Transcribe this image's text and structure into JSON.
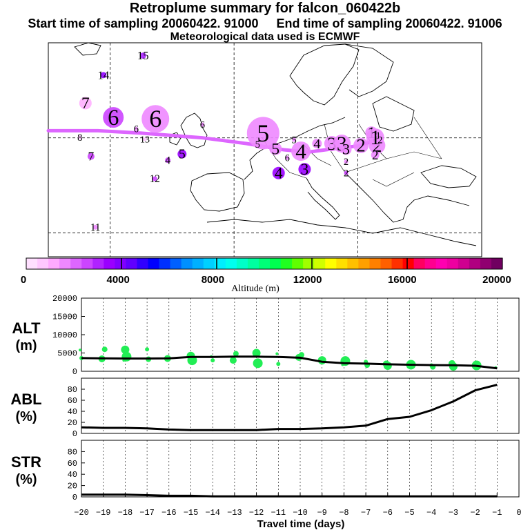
{
  "header": {
    "title": "Retroplume summary for falcon_060422b",
    "start_label": "Start time of sampling 20060422. 91000",
    "end_label": "End time of sampling 20060422. 91006",
    "met_label": "Meteorological data used is ECMWF"
  },
  "colorbar": {
    "label": "Altitude (m)",
    "ticks": [
      "0",
      "4000",
      "8000",
      "12000",
      "16000",
      "20000"
    ],
    "min": 0,
    "max": 20000,
    "colors": [
      "#ffe0ff",
      "#ffc8ff",
      "#ffaaff",
      "#ee88ff",
      "#dd66ff",
      "#cc44ff",
      "#b022ff",
      "#9a00ff",
      "#8000ff",
      "#6000ff",
      "#3000ff",
      "#0000ff",
      "#0030ff",
      "#0060ff",
      "#0090ff",
      "#00b0ff",
      "#00d0ff",
      "#00eeff",
      "#00ffee",
      "#00ffc8",
      "#00ffa0",
      "#00ff78",
      "#00ff50",
      "#20ff20",
      "#60ff00",
      "#a0ff00",
      "#d0ff00",
      "#ffff00",
      "#ffe000",
      "#ffc000",
      "#ffa000",
      "#ff8000",
      "#ff6000",
      "#ff3000",
      "#ff0000",
      "#ff0060",
      "#ff0090",
      "#ff00b0",
      "#ee00a0",
      "#d00090",
      "#b00080",
      "#900070",
      "#700060"
    ]
  },
  "map": {
    "labels": [
      {
        "text": "15",
        "lon": 5.3,
        "lat": 67.3,
        "color": "#aa22ff",
        "size": 9
      },
      {
        "text": "14",
        "lon": -1.1,
        "lat": 63.2,
        "color": "#9000ff",
        "size": 9
      },
      {
        "text": "7",
        "lon": -4.0,
        "lat": 57.3,
        "color": "#ffb0ff",
        "size": 18
      },
      {
        "text": "6",
        "lon": 0.5,
        "lat": 54.3,
        "color": "#cc44ff",
        "size": 30
      },
      {
        "text": "6",
        "lon": 7.3,
        "lat": 54.0,
        "color": "#ee88ff",
        "size": 40
      },
      {
        "text": "6",
        "lon": 4.2,
        "lat": 51.9,
        "color": "#ee88ff",
        "size": 6
      },
      {
        "text": "6",
        "lon": 14.9,
        "lat": 52.8,
        "color": "#ee88ff",
        "size": 6
      },
      {
        "text": "5",
        "lon": 24.7,
        "lat": 51.0,
        "color": "#ee88ff",
        "size": 47
      },
      {
        "text": "5",
        "lon": 23.8,
        "lat": 48.6,
        "color": "#ee88ff",
        "size": 6
      },
      {
        "text": "5",
        "lon": 26.7,
        "lat": 47.7,
        "color": "#ee88ff",
        "size": 18
      },
      {
        "text": "5",
        "lon": 29.7,
        "lat": 49.6,
        "color": "#ee88ff",
        "size": 6
      },
      {
        "text": "8",
        "lon": -4.9,
        "lat": 50.1,
        "color": "#ffc8ff",
        "size": 6
      },
      {
        "text": "13",
        "lon": 5.6,
        "lat": 49.7,
        "color": "#ffc8ff",
        "size": 5
      },
      {
        "text": "4",
        "lon": 30.8,
        "lat": 47.2,
        "color": "#ee88ff",
        "size": 28
      },
      {
        "text": "6",
        "lon": 28.6,
        "lat": 45.8,
        "color": "#ee88ff",
        "size": 6
      },
      {
        "text": "4",
        "lon": 27.2,
        "lat": 42.6,
        "color": "#9a00ff",
        "size": 18
      },
      {
        "text": "3",
        "lon": 31.4,
        "lat": 43.4,
        "color": "#9a00ff",
        "size": 18
      },
      {
        "text": "5",
        "lon": 11.6,
        "lat": 46.6,
        "color": "#9a00ff",
        "size": 13
      },
      {
        "text": "4",
        "lon": 9.3,
        "lat": 45.3,
        "color": "#cc44ff",
        "size": 8
      },
      {
        "text": "7",
        "lon": -3.1,
        "lat": 46.1,
        "color": "#cc44ff",
        "size": 10
      },
      {
        "text": "12",
        "lon": 7.2,
        "lat": 41.4,
        "color": "#cc44ff",
        "size": 7
      },
      {
        "text": "11",
        "lon": -2.4,
        "lat": 31.2,
        "color": "#ee88ff",
        "size": 7
      },
      {
        "text": "4",
        "lon": 33.4,
        "lat": 48.8,
        "color": "#ee88ff",
        "size": 14
      },
      {
        "text": "3",
        "lon": 35.8,
        "lat": 48.8,
        "color": "#ee88ff",
        "size": 22
      },
      {
        "text": "3",
        "lon": 37.4,
        "lat": 48.8,
        "color": "#ee88ff",
        "size": 26
      },
      {
        "text": "3",
        "lon": 38.1,
        "lat": 47.6,
        "color": "#ee88ff",
        "size": 16
      },
      {
        "text": "2",
        "lon": 40.5,
        "lat": 48.4,
        "color": "#ee88ff",
        "size": 22
      },
      {
        "text": "2",
        "lon": 43.1,
        "lat": 48.4,
        "color": "#ee88ff",
        "size": 24
      },
      {
        "text": "2",
        "lon": 38.1,
        "lat": 45.0,
        "color": "#ee88ff",
        "size": 6
      },
      {
        "text": "2",
        "lon": 38.1,
        "lat": 42.6,
        "color": "#cc44ff",
        "size": 6
      },
      {
        "text": "2",
        "lon": 42.8,
        "lat": 46.4,
        "color": "#ee88ff",
        "size": 12
      },
      {
        "text": "1",
        "lon": 42.2,
        "lat": 51.1,
        "color": "#ee88ff",
        "size": 18
      },
      {
        "text": "1",
        "lon": 42.8,
        "lat": 50.1,
        "color": "#ee88ff",
        "size": 26
      },
      {
        "text": "1",
        "lon": 43.3,
        "lat": 50.5,
        "color": "#ee88ff",
        "size": 6
      },
      {
        "text": "2",
        "lon": 43.6,
        "lat": 49.6,
        "color": "#ee88ff",
        "size": 6
      }
    ],
    "track": [
      [
        -10,
        51.5
      ],
      [
        -2,
        51.5
      ],
      [
        5,
        51.0
      ],
      [
        15,
        50.0
      ],
      [
        22,
        48.8
      ],
      [
        28,
        47.5
      ],
      [
        32,
        47.0
      ],
      [
        36,
        47.7
      ],
      [
        40,
        48.3
      ],
      [
        43,
        49.5
      ]
    ],
    "lon_lines": [
      0,
      20,
      40,
      60
    ],
    "lat_lines": [
      30,
      50,
      70
    ]
  },
  "chart_data": [
    {
      "type": "line",
      "title": "ALT (m)",
      "ylim": [
        0,
        20000
      ],
      "yticks": [
        0,
        5000,
        10000,
        15000,
        20000
      ],
      "x": [
        -20,
        -19,
        -18,
        -17,
        -16,
        -15,
        -14,
        -13,
        -12,
        -11,
        -10,
        -9,
        -8,
        -7,
        -6,
        -5,
        -4,
        -3,
        -2,
        -1
      ],
      "series": [
        {
          "name": "mean altitude",
          "values": [
            3600,
            3550,
            3500,
            3500,
            3550,
            3900,
            3900,
            4000,
            4000,
            3900,
            3700,
            2600,
            2200,
            2100,
            1900,
            1800,
            1700,
            1650,
            1500,
            800
          ]
        },
        {
          "name": "plume altitude clusters",
          "points": [
            [
              -20,
              5800
            ],
            [
              -20,
              3600
            ],
            [
              -19,
              6000
            ],
            [
              -19,
              3400
            ],
            [
              -18,
              5900
            ],
            [
              -18,
              4000
            ],
            [
              -18,
              3000
            ],
            [
              -17,
              6000
            ],
            [
              -17,
              3300
            ],
            [
              -16,
              3500
            ],
            [
              -15,
              4200
            ],
            [
              -15,
              3000
            ],
            [
              -14,
              4000
            ],
            [
              -14,
              3000
            ],
            [
              -13,
              4800
            ],
            [
              -13,
              3000
            ],
            [
              -12,
              5000
            ],
            [
              -12,
              2200
            ],
            [
              -11,
              4800
            ],
            [
              -11,
              2000
            ],
            [
              -10,
              4500
            ],
            [
              -10,
              3800
            ],
            [
              -9,
              3000
            ],
            [
              -8,
              2800
            ],
            [
              -8,
              1800
            ],
            [
              -7,
              2600
            ],
            [
              -7,
              1700
            ],
            [
              -6,
              2000
            ],
            [
              -6,
              1500
            ],
            [
              -5,
              1800
            ],
            [
              -5,
              1200
            ],
            [
              -4,
              1600
            ],
            [
              -4,
              1200
            ],
            [
              -3,
              2100
            ],
            [
              -3,
              1300
            ],
            [
              -2,
              1600
            ],
            [
              -1,
              1000
            ]
          ]
        }
      ]
    },
    {
      "type": "line",
      "title": "ABL (%)",
      "ylim": [
        0,
        100
      ],
      "yticks": [
        0,
        20,
        40,
        60,
        80
      ],
      "x": [
        -20,
        -19,
        -18,
        -17,
        -16,
        -15,
        -14,
        -13,
        -12,
        -11,
        -10,
        -9,
        -8,
        -7,
        -6,
        -5,
        -4,
        -3,
        -2,
        -1
      ],
      "series": [
        {
          "name": "ABL fraction",
          "values": [
            11,
            10,
            10,
            9,
            7,
            6,
            6,
            6,
            6,
            8,
            8,
            9,
            11,
            14,
            26,
            30,
            42,
            58,
            78,
            88
          ]
        }
      ]
    },
    {
      "type": "line",
      "title": "STR (%)",
      "ylim": [
        0,
        100
      ],
      "yticks": [
        0,
        20,
        40,
        60,
        80
      ],
      "xlabel": "Travel time (days)",
      "xticks": [
        "−20",
        "−19",
        "−18",
        "−17",
        "−16",
        "−15",
        "−14",
        "−13",
        "−12",
        "−11",
        "−10",
        "−9",
        "−8",
        "−7",
        "−6",
        "−5",
        "−4",
        "−3",
        "−2",
        "−1",
        "0"
      ],
      "x": [
        -20,
        -19,
        -18,
        -17,
        -16,
        -15,
        -14,
        -13,
        -12,
        -11,
        -10,
        -9,
        -8,
        -7,
        -6,
        -5,
        -4,
        -3,
        -2,
        -1
      ],
      "series": [
        {
          "name": "STR fraction",
          "values": [
            4,
            4,
            4,
            3,
            2,
            2,
            1,
            1,
            1,
            1,
            1,
            1,
            1,
            1,
            1,
            1,
            1,
            1,
            1,
            1
          ]
        }
      ]
    }
  ]
}
